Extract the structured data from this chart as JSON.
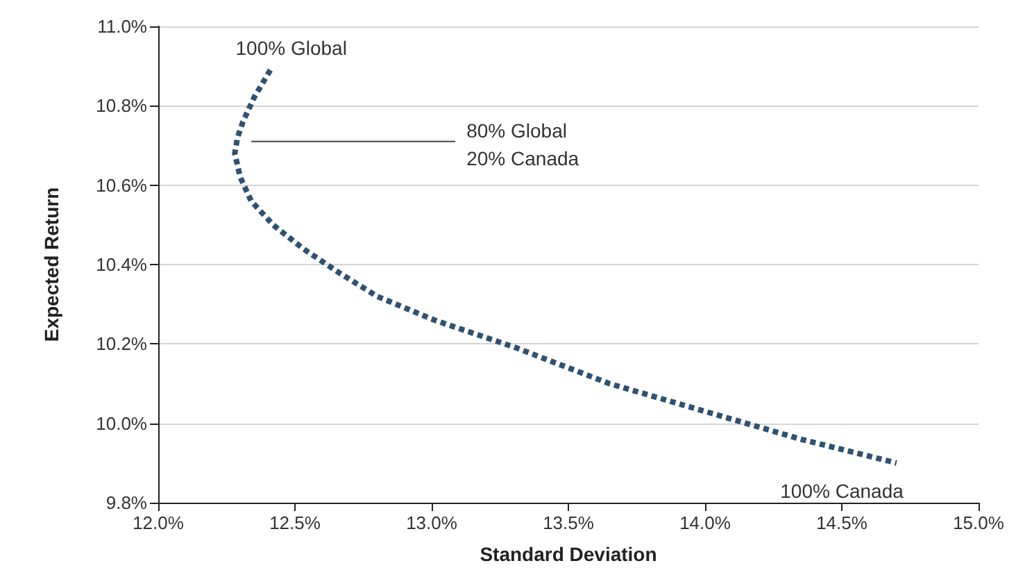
{
  "chart_data": {
    "type": "line",
    "xlabel": "Standard Deviation",
    "ylabel": "Expected Return",
    "series": [
      {
        "color": "#2e5273",
        "x": [
          12.41,
          12.35,
          12.31,
          12.29,
          12.28,
          12.3,
          12.34,
          12.42,
          12.53,
          12.66,
          12.8,
          13.01,
          13.31,
          13.65,
          14.0,
          14.35,
          14.7
        ],
        "values": [
          10.89,
          10.82,
          10.76,
          10.72,
          10.68,
          10.62,
          10.56,
          10.5,
          10.44,
          10.38,
          10.32,
          10.26,
          10.19,
          10.1,
          10.03,
          9.96,
          9.9
        ]
      }
    ],
    "xlim": [
      12.0,
      15.0
    ],
    "xticks": [
      {
        "value": 12.0,
        "label": "12.0%"
      },
      {
        "value": 12.5,
        "label": "12.5%"
      },
      {
        "value": 13.0,
        "label": "13.0%"
      },
      {
        "value": 13.5,
        "label": "13.5%"
      },
      {
        "value": 14.0,
        "label": "14.0%"
      },
      {
        "value": 14.5,
        "label": "14.5%"
      },
      {
        "value": 15.0,
        "label": "15.0%"
      }
    ],
    "ylim": [
      9.8,
      11.0
    ],
    "yticks": [
      {
        "value": 9.8,
        "label": "9.8%"
      },
      {
        "value": 10.0,
        "label": "10.0%"
      },
      {
        "value": 10.2,
        "label": "10.2%"
      },
      {
        "value": 10.4,
        "label": "10.4%"
      },
      {
        "value": 10.6,
        "label": "10.6%"
      },
      {
        "value": 10.8,
        "label": "10.8%"
      },
      {
        "value": 11.0,
        "label": "11.0%"
      }
    ],
    "annotations": [
      {
        "text": "100% Global",
        "x": 12.41,
        "y": 10.89
      },
      {
        "text": "80% Global\n20% Canada",
        "x": 12.3,
        "y": 10.71
      },
      {
        "text": "100% Canada",
        "x": 14.7,
        "y": 9.9
      }
    ],
    "grid": "y",
    "marker": "none",
    "line_style": "dashed"
  }
}
